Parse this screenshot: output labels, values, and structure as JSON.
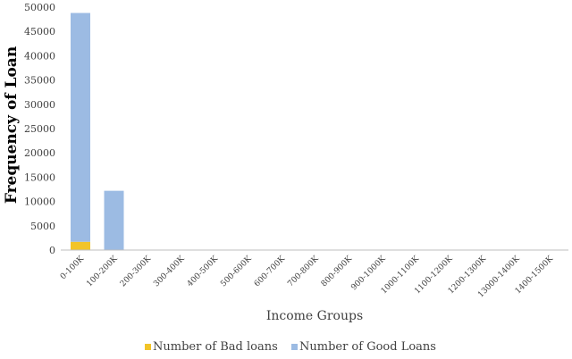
{
  "chart_data": {
    "type": "bar",
    "stacked": true,
    "title": "",
    "xlabel": "Income Groups",
    "ylabel": "Frequency of Loan",
    "ylim": [
      0,
      50000
    ],
    "yticks": [
      "0",
      "5000",
      "10000",
      "15000",
      "20000",
      "25000",
      "30000",
      "35000",
      "40000",
      "45000",
      "50000"
    ],
    "categories": [
      "0-100K",
      "100-200K",
      "200-300K",
      "300-400K",
      "400-500K",
      "500-600K",
      "600-700K",
      "700-800K",
      "800-900K",
      "900-1000K",
      "1000-1100K",
      "1100-1200K",
      "1200-1300K",
      "13000-1400K",
      "1400-1500K"
    ],
    "series": [
      {
        "name": "Number of Bad loans",
        "color": "#f2c428",
        "values": [
          1700,
          0,
          0,
          0,
          0,
          0,
          0,
          0,
          0,
          0,
          0,
          0,
          0,
          0,
          0
        ]
      },
      {
        "name": "Number of Good Loans",
        "color": "#9cbbe3",
        "values": [
          47100,
          12200,
          0,
          0,
          0,
          0,
          0,
          0,
          0,
          0,
          0,
          0,
          0,
          0,
          0
        ]
      }
    ],
    "grid": false,
    "legend_position": "bottom"
  }
}
